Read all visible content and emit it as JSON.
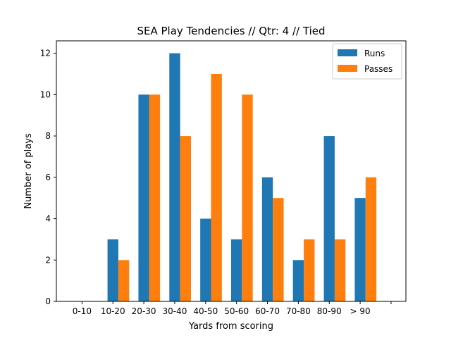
{
  "chart_data": {
    "type": "bar",
    "title": "SEA Play Tendencies // Qtr: 4 // Tied",
    "xlabel": "Yards from scoring",
    "ylabel": "Number of plays",
    "categories": [
      "0-10",
      "10-20",
      "20-30",
      "30-40",
      "40-50",
      "50-60",
      "60-70",
      "70-80",
      "80-90",
      "> 90",
      ""
    ],
    "series": [
      {
        "name": "Runs",
        "color": "#1f77b4",
        "values": [
          0,
          3,
          10,
          12,
          4,
          3,
          6,
          2,
          8,
          5,
          0
        ]
      },
      {
        "name": "Passes",
        "color": "#ff7f0e",
        "values": [
          0,
          2,
          10,
          8,
          11,
          10,
          5,
          3,
          3,
          6,
          0
        ]
      }
    ],
    "ylim": [
      0,
      12.6
    ],
    "yticks": [
      0,
      2,
      4,
      6,
      8,
      10,
      12
    ],
    "grid": false,
    "legend": "top-right"
  }
}
